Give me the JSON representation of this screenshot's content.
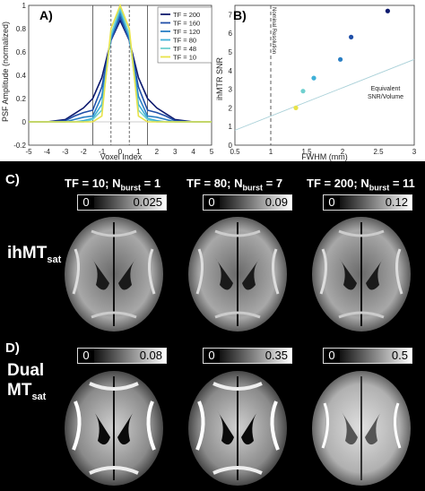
{
  "panel_a": {
    "letter": "A)",
    "ylabel": "PSF Amplitude (normalized)",
    "xlabel": "Voxel Index",
    "xticks": [
      "-5",
      "-4",
      "-3",
      "-2",
      "-1",
      "0",
      "1",
      "2",
      "3",
      "4",
      "5"
    ],
    "yticks": [
      "-0.2",
      "0",
      "0.2",
      "0.4",
      "0.6",
      "0.8",
      "1"
    ],
    "legend": [
      "TF = 200",
      "TF = 160",
      "TF = 120",
      "TF = 80",
      "TF = 48",
      "TF = 10"
    ],
    "colors": [
      "#0d1a6e",
      "#1f4fa8",
      "#2a7fc4",
      "#3fb0d8",
      "#6fd0cf",
      "#e8e34a"
    ]
  },
  "panel_b": {
    "letter": "B)",
    "ylabel": "ihMTR SNR",
    "xlabel": "FWHM (mm)",
    "xticks": [
      "0.5",
      "1",
      "1.5",
      "2",
      "2.5",
      "3"
    ],
    "yticks": [
      "0",
      "1",
      "2",
      "3",
      "4",
      "5",
      "6",
      "7"
    ],
    "nominal_label": "Nominal Resolution",
    "equiv_label_1": "Equivalent",
    "equiv_label_2": "SNR/Volume"
  },
  "chart_data": [
    {
      "type": "line",
      "title": "",
      "xlabel": "Voxel Index",
      "ylabel": "PSF Amplitude (normalized)",
      "xlim": [
        -5,
        5
      ],
      "ylim": [
        -0.2,
        1.0
      ],
      "x": [
        -5,
        -4,
        -3,
        -2.5,
        -2,
        -1.5,
        -1,
        -0.5,
        0,
        0.5,
        1,
        1.5,
        2,
        2.5,
        3,
        4,
        5
      ],
      "series": [
        {
          "name": "TF = 200",
          "values": [
            0,
            0,
            0.02,
            0.07,
            0.12,
            0.2,
            0.38,
            0.7,
            0.87,
            0.7,
            0.38,
            0.2,
            0.12,
            0.07,
            0.02,
            0,
            0
          ]
        },
        {
          "name": "TF = 160",
          "values": [
            0,
            0,
            0.01,
            0.05,
            0.08,
            0.1,
            0.3,
            0.7,
            0.9,
            0.7,
            0.3,
            0.1,
            0.08,
            0.05,
            0.01,
            0,
            0
          ]
        },
        {
          "name": "TF = 120",
          "values": [
            0,
            0,
            0,
            0.02,
            0.04,
            0.05,
            0.22,
            0.72,
            0.93,
            0.72,
            0.22,
            0.05,
            0.04,
            0.02,
            0,
            0,
            0
          ]
        },
        {
          "name": "TF = 80",
          "values": [
            0,
            0,
            0,
            0,
            0.01,
            0.03,
            0.15,
            0.74,
            0.96,
            0.74,
            0.15,
            0.03,
            0.01,
            0,
            0,
            0,
            0
          ]
        },
        {
          "name": "TF = 48",
          "values": [
            0,
            0,
            0,
            0,
            0,
            0.02,
            0.1,
            0.75,
            0.98,
            0.75,
            0.1,
            0.02,
            0,
            0,
            0,
            0,
            0
          ]
        },
        {
          "name": "TF = 10",
          "values": [
            0,
            0,
            0,
            0,
            0,
            0,
            0.05,
            0.8,
            1.0,
            0.8,
            0.05,
            0,
            0,
            0,
            0,
            0,
            0
          ]
        }
      ]
    },
    {
      "type": "scatter",
      "title": "",
      "xlabel": "FWHM (mm)",
      "ylabel": "ihMTR SNR",
      "xlim": [
        0.5,
        3
      ],
      "ylim": [
        0,
        7.5
      ],
      "points": [
        {
          "x": 1.35,
          "y": 2.0,
          "color": "#e8e34a"
        },
        {
          "x": 1.45,
          "y": 2.9,
          "color": "#6fd0cf"
        },
        {
          "x": 1.6,
          "y": 3.6,
          "color": "#3fb0d8"
        },
        {
          "x": 1.97,
          "y": 4.6,
          "color": "#2a7fc4"
        },
        {
          "x": 2.12,
          "y": 5.8,
          "color": "#1f4fa8"
        },
        {
          "x": 2.63,
          "y": 7.2,
          "color": "#0d1a6e"
        }
      ],
      "reference_line": {
        "x": [
          0.5,
          3.0
        ],
        "y": [
          0.8,
          4.6
        ]
      },
      "nominal_x": 1.0
    }
  ],
  "panel_c": {
    "letter": "C)",
    "row_label_main": "ihMT",
    "row_label_sub": "sat",
    "cols": [
      {
        "header_main": "TF = 10; N",
        "header_sub": "burst",
        "header_tail": " = 1",
        "cbar_min": "0",
        "cbar_max": "0.025"
      },
      {
        "header_main": "TF = 80; N",
        "header_sub": "burst",
        "header_tail": " = 7",
        "cbar_min": "0",
        "cbar_max": "0.09"
      },
      {
        "header_main": "TF = 200; N",
        "header_sub": "burst",
        "header_tail": " = 11",
        "cbar_min": "0",
        "cbar_max": "0.12"
      }
    ]
  },
  "panel_d": {
    "letter": "D)",
    "row_label_line1": "Dual",
    "row_label_main": "MT",
    "row_label_sub": "sat",
    "cols": [
      {
        "cbar_min": "0",
        "cbar_max": "0.08"
      },
      {
        "cbar_min": "0",
        "cbar_max": "0.35"
      },
      {
        "cbar_min": "0",
        "cbar_max": "0.5"
      }
    ]
  }
}
